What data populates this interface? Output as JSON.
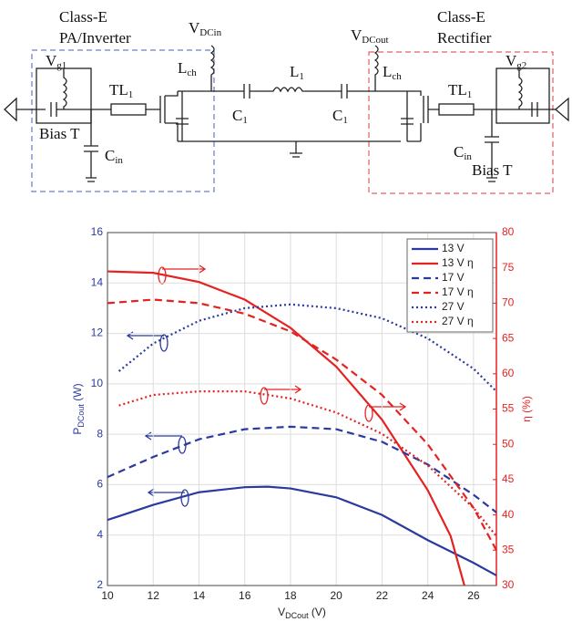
{
  "diagram": {
    "labels": [
      {
        "main": "Class-E"
      },
      {
        "main": "PA/Inverter"
      },
      {
        "main": "V",
        "sub": "DCin"
      },
      {
        "main": "L",
        "sub": "ch"
      },
      {
        "main": "TL",
        "sub": "1"
      },
      {
        "main": "V",
        "sub": "g1"
      },
      {
        "main": "Bias T"
      },
      {
        "main": "C",
        "sub": "in"
      },
      {
        "main": "C",
        "sub": "1"
      },
      {
        "main": "L",
        "sub": "1"
      },
      {
        "main": "C",
        "sub": "1"
      },
      {
        "main": "V",
        "sub": "DCout"
      },
      {
        "main": "L",
        "sub": "ch"
      },
      {
        "main": "Class-E"
      },
      {
        "main": "Rectifier"
      },
      {
        "main": "TL",
        "sub": "1"
      },
      {
        "main": "V",
        "sub": "g2"
      },
      {
        "main": "Bias T"
      },
      {
        "main": "C",
        "sub": "in"
      }
    ]
  },
  "chart_data": {
    "type": "line",
    "xlabel": {
      "main": "V",
      "sub": "DCout",
      "unit": " (V)"
    },
    "ylabel": {
      "main": "P",
      "sub": "DCout",
      "unit": " (W)"
    },
    "y2label": "η (%)",
    "xlim": [
      10,
      27
    ],
    "xticks": [
      10,
      12,
      14,
      16,
      18,
      20,
      22,
      24,
      26
    ],
    "ylim": [
      2,
      16
    ],
    "yticks": [
      2,
      4,
      6,
      8,
      10,
      12,
      14,
      16
    ],
    "y2lim": [
      30,
      80
    ],
    "y2ticks": [
      30,
      35,
      40,
      45,
      50,
      55,
      60,
      65,
      70,
      75,
      80
    ],
    "grid": true,
    "legend": "upper right",
    "series": [
      {
        "name": "13 V",
        "color": "#2b3a9e",
        "style": "solid",
        "x": [
          10,
          12,
          14,
          16,
          17,
          18,
          20,
          22,
          24,
          26,
          27
        ],
        "values": [
          4.6,
          5.2,
          5.7,
          5.9,
          5.92,
          5.85,
          5.5,
          4.8,
          3.8,
          2.9,
          2.4
        ]
      },
      {
        "name": "13 V η",
        "color": "#e52222",
        "style": "solid",
        "axis": "y2",
        "x": [
          10,
          12,
          14,
          16,
          18,
          20,
          22,
          24,
          25,
          25.6
        ],
        "values": [
          74.5,
          74.3,
          73,
          70.5,
          66.5,
          61,
          53.5,
          43.5,
          37,
          30
        ]
      },
      {
        "name": "17 V",
        "color": "#2b3a9e",
        "style": "dashed",
        "x": [
          10,
          12,
          14,
          16,
          18,
          20,
          22,
          24,
          26,
          27
        ],
        "values": [
          6.3,
          7.1,
          7.8,
          8.2,
          8.3,
          8.2,
          7.7,
          6.8,
          5.6,
          4.9
        ]
      },
      {
        "name": "17 V η",
        "color": "#e52222",
        "style": "dashed",
        "axis": "y2",
        "x": [
          10,
          12,
          14,
          16,
          18,
          20,
          22,
          24,
          26,
          27
        ],
        "values": [
          70,
          70.5,
          70,
          68.5,
          66,
          62,
          57,
          50,
          41,
          35
        ]
      },
      {
        "name": "27 V",
        "color": "#2b3a9e",
        "style": "dotted",
        "x": [
          10.5,
          12,
          14,
          16,
          18,
          20,
          22,
          24,
          26,
          27
        ],
        "values": [
          10.5,
          11.6,
          12.5,
          13.0,
          13.15,
          13.0,
          12.6,
          11.8,
          10.6,
          9.7
        ]
      },
      {
        "name": "27 V η",
        "color": "#e52222",
        "style": "dotted",
        "axis": "y2",
        "x": [
          10.5,
          12,
          14,
          16,
          18,
          20,
          22,
          24,
          26,
          27
        ],
        "values": [
          55.5,
          57,
          57.5,
          57.5,
          56.5,
          54.5,
          51.5,
          47,
          41,
          37
        ]
      }
    ]
  }
}
